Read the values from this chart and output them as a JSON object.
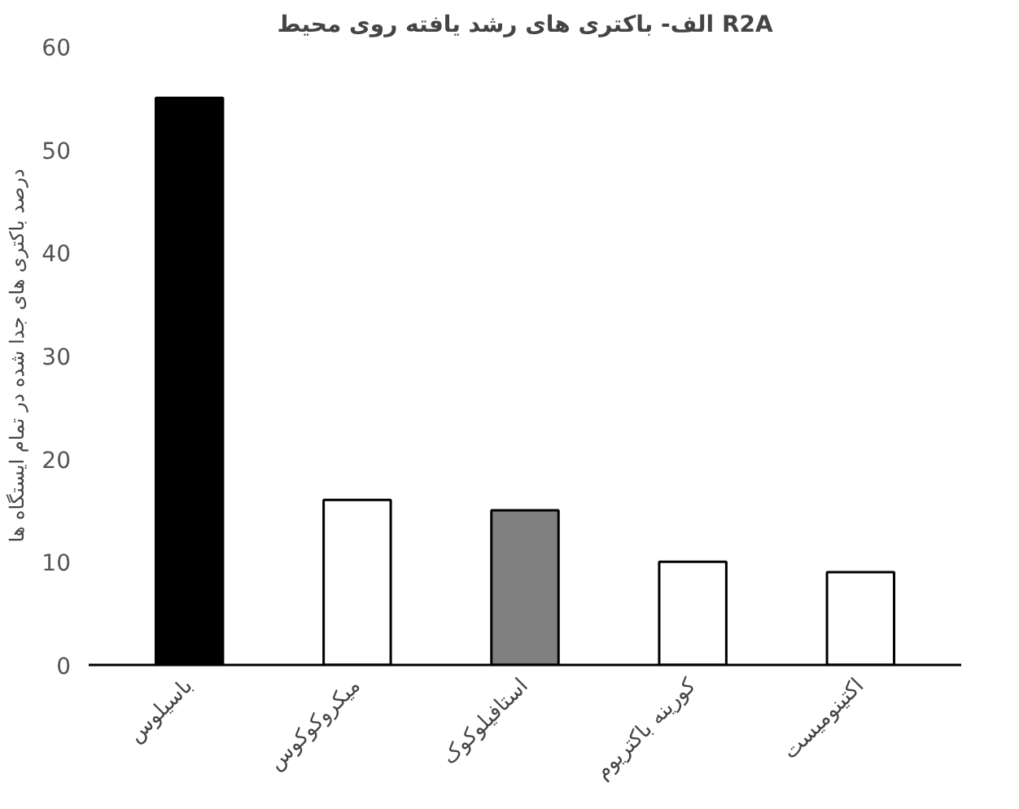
{
  "chart_data": {
    "type": "bar",
    "title": "الف- باکتری های رشد یافته روی محیط R2A",
    "ylabel": "درصد باکتری های جدا شده در تمام ایستگاه ها",
    "categories": [
      "باسیلوس",
      "میکروکوکوس",
      "استافیلوکوک",
      "کورینه باکتریوم",
      "اکتینومیست"
    ],
    "values": [
      55,
      16,
      15,
      10,
      9
    ],
    "colors": [
      "#000000",
      "#ffffff",
      "#808080",
      "#ffffff",
      "#ffffff"
    ],
    "ylim": [
      0,
      60
    ],
    "yticks": [
      0,
      10,
      20,
      30,
      40,
      50,
      60
    ],
    "grid": false
  }
}
